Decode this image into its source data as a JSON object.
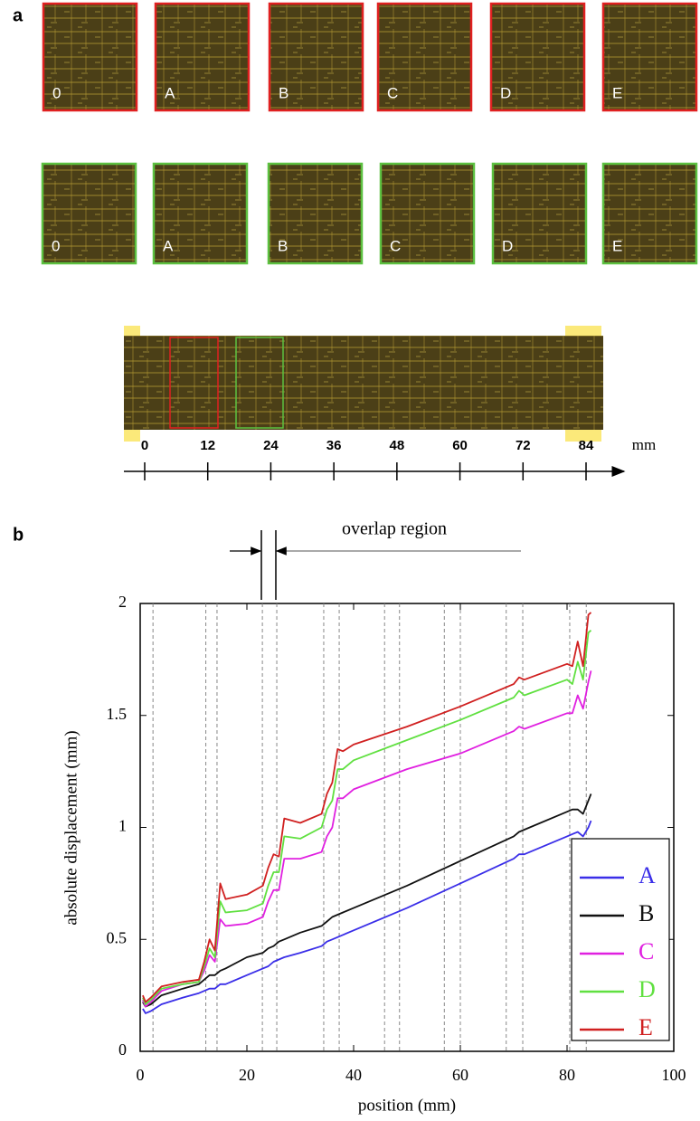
{
  "panel_labels": [
    "a",
    "b"
  ],
  "panel_a": {
    "rows": [
      {
        "color": "#e02020",
        "labels": [
          "0",
          "A",
          "B",
          "C",
          "D",
          "E"
        ]
      },
      {
        "color": "#5cc040",
        "labels": [
          "0",
          "A",
          "B",
          "C",
          "D",
          "E"
        ]
      }
    ],
    "scale_ticks": [
      0,
      12,
      24,
      36,
      48,
      60,
      72,
      84
    ],
    "scale_unit": "mm"
  },
  "chart_data": {
    "type": "line",
    "xlabel": "position (mm)",
    "ylabel": "absolute displacement (mm)",
    "annotation": "overlap region",
    "xlim": [
      0,
      100
    ],
    "xticks": [
      0,
      20,
      40,
      60,
      80,
      100
    ],
    "ylim": [
      0,
      2
    ],
    "yticks": [
      0,
      0.5,
      1,
      1.5,
      2
    ],
    "legend": "lower right",
    "vlines": [
      2.4,
      12.3,
      14.4,
      22.9,
      25.6,
      34.4,
      37.3,
      45.8,
      48.6,
      57,
      60,
      68.6,
      71.7,
      80.5,
      83.6
    ],
    "x": [
      0.5,
      1,
      2,
      4,
      8,
      11,
      12,
      13,
      14,
      15,
      16,
      20,
      23,
      24,
      25,
      26,
      27,
      30,
      34,
      35,
      36,
      37,
      38,
      40,
      50,
      60,
      70,
      71,
      72,
      80,
      81,
      82,
      83,
      84,
      84.5
    ],
    "series": [
      {
        "name": "A",
        "color": "#3a2ee8",
        "values": [
          0.19,
          0.17,
          0.18,
          0.21,
          0.24,
          0.26,
          0.27,
          0.28,
          0.28,
          0.3,
          0.3,
          0.34,
          0.37,
          0.38,
          0.4,
          0.41,
          0.42,
          0.44,
          0.47,
          0.49,
          0.5,
          0.51,
          0.52,
          0.54,
          0.64,
          0.75,
          0.86,
          0.88,
          0.88,
          0.96,
          0.97,
          0.98,
          0.96,
          1.0,
          1.03
        ]
      },
      {
        "name": "B",
        "color": "#111111",
        "values": [
          0.22,
          0.2,
          0.21,
          0.25,
          0.28,
          0.3,
          0.32,
          0.34,
          0.34,
          0.36,
          0.37,
          0.42,
          0.44,
          0.46,
          0.47,
          0.49,
          0.5,
          0.53,
          0.56,
          0.58,
          0.6,
          0.61,
          0.62,
          0.64,
          0.74,
          0.85,
          0.96,
          0.98,
          0.99,
          1.07,
          1.08,
          1.08,
          1.06,
          1.12,
          1.15
        ]
      },
      {
        "name": "C",
        "color": "#e020e0",
        "values": [
          0.23,
          0.2,
          0.22,
          0.27,
          0.3,
          0.31,
          0.36,
          0.43,
          0.4,
          0.59,
          0.56,
          0.57,
          0.6,
          0.67,
          0.72,
          0.72,
          0.86,
          0.86,
          0.89,
          0.96,
          1.0,
          1.13,
          1.13,
          1.17,
          1.26,
          1.33,
          1.43,
          1.45,
          1.44,
          1.51,
          1.51,
          1.59,
          1.53,
          1.65,
          1.7
        ]
      },
      {
        "name": "D",
        "color": "#60e040",
        "values": [
          0.24,
          0.21,
          0.23,
          0.28,
          0.3,
          0.31,
          0.38,
          0.46,
          0.42,
          0.67,
          0.62,
          0.63,
          0.66,
          0.74,
          0.8,
          0.8,
          0.96,
          0.95,
          1.0,
          1.08,
          1.12,
          1.26,
          1.26,
          1.3,
          1.39,
          1.48,
          1.58,
          1.61,
          1.59,
          1.66,
          1.64,
          1.74,
          1.66,
          1.87,
          1.88
        ]
      },
      {
        "name": "E",
        "color": "#d02020",
        "values": [
          0.25,
          0.22,
          0.24,
          0.29,
          0.31,
          0.32,
          0.4,
          0.5,
          0.45,
          0.75,
          0.68,
          0.7,
          0.74,
          0.82,
          0.88,
          0.87,
          1.04,
          1.02,
          1.06,
          1.15,
          1.2,
          1.35,
          1.34,
          1.37,
          1.45,
          1.54,
          1.64,
          1.67,
          1.66,
          1.73,
          1.72,
          1.83,
          1.72,
          1.95,
          1.96
        ]
      }
    ]
  }
}
